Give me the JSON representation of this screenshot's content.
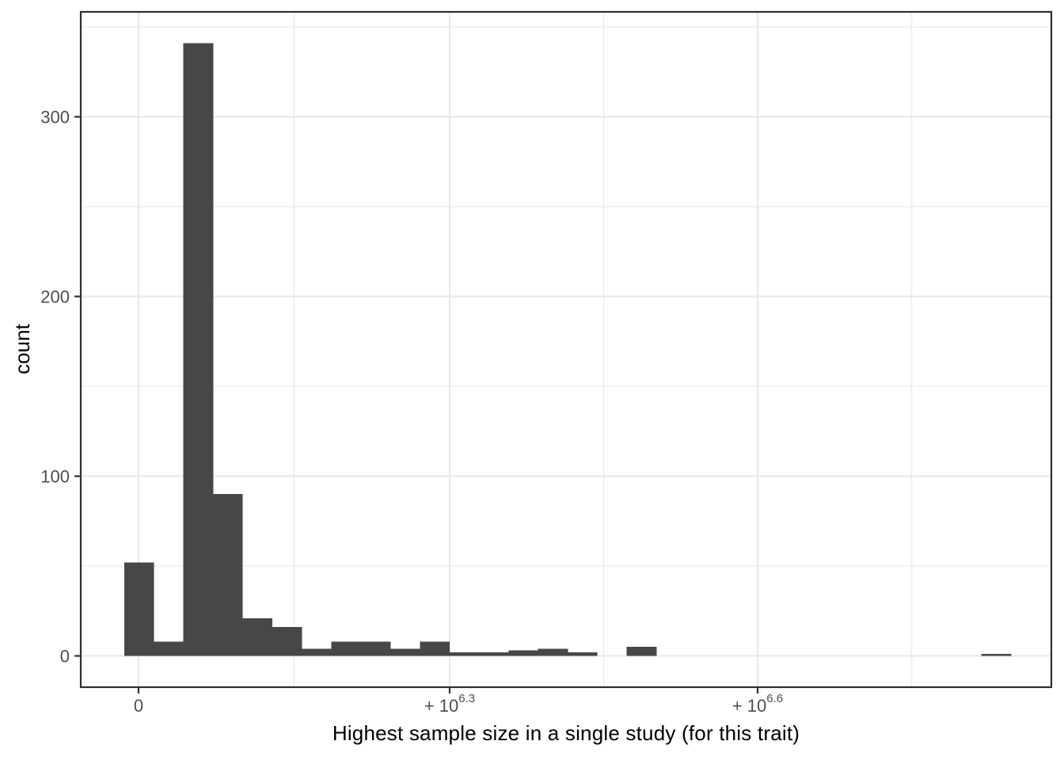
{
  "figure": {
    "background": "#ffffff",
    "kind": "ggplot-style histogram, no title, no legend"
  },
  "chart_data": {
    "type": "bar",
    "subtype": "histogram",
    "title": "",
    "xlabel": "Highest sample size in a single study (for this trait)",
    "ylabel": "count",
    "x_scale": "pseudo-log (signed log10), ticks at 0, +10^6.3, +10^6.6",
    "x_ticks": [
      {
        "text": "0",
        "prefix": "0",
        "exponent": ""
      },
      {
        "text": "+10^6.3",
        "prefix": "+ 10",
        "exponent": "6.3"
      },
      {
        "text": "+10^6.6",
        "prefix": "+ 10",
        "exponent": "6.6"
      }
    ],
    "y_ticks": [
      0,
      100,
      200,
      300
    ],
    "y_minor_ticks": [
      50,
      150,
      250,
      350
    ],
    "ylim": [
      -17,
      358
    ],
    "grid": "on",
    "legend": "none",
    "n_bins": 30,
    "bin_counts": [
      52,
      8,
      341,
      90,
      21,
      16,
      4,
      8,
      8,
      4,
      8,
      2,
      2,
      3,
      4,
      2,
      0,
      5,
      0,
      0,
      0,
      0,
      0,
      0,
      0,
      0,
      0,
      0,
      0,
      1
    ],
    "bin_note": "equal-width bins on transformed axis; first bin centered on x=0; last bin (count 1) sits near x=10^6.85",
    "colors": {
      "bar_fill": "#474747",
      "grid_major": "#e9e9e9",
      "grid_minor": "#ededed",
      "panel_border": "#2e2e2e",
      "tick_mark": "#333333",
      "tick_text": "#4d4d4d",
      "axis_title_text": "#000000",
      "panel_background": "#ffffff"
    }
  }
}
